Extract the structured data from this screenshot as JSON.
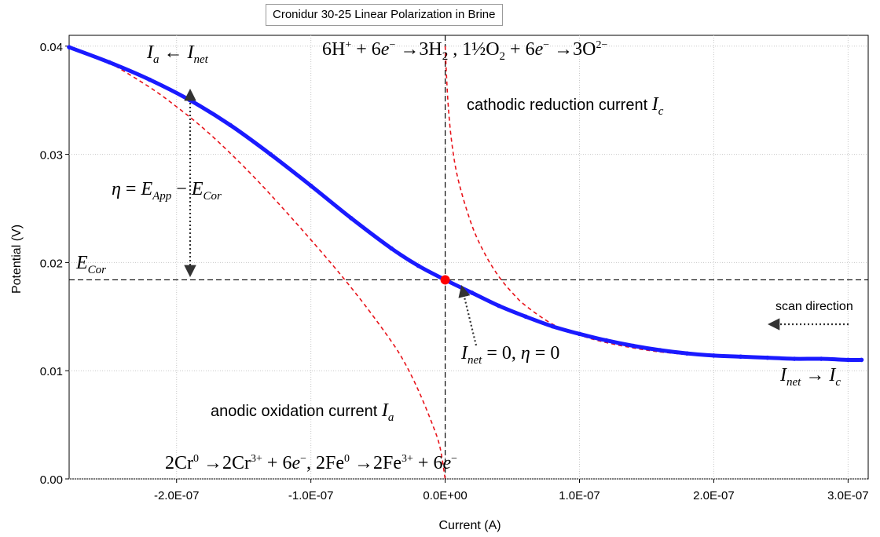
{
  "chart_data": {
    "type": "line",
    "title": "Cronidur 30-25  Linear Polarization in Brine",
    "xlabel": "Current (A)",
    "ylabel": "Potential (V)",
    "xlim": [
      -2.8e-07,
      3.15e-07
    ],
    "ylim": [
      0.0,
      0.041
    ],
    "x_ticks": [
      -2e-07,
      -1e-07,
      0,
      1e-07,
      2e-07,
      3e-07
    ],
    "x_tick_labels": [
      "-2.0E-07",
      "-1.0E-07",
      "0.0E+00",
      "1.0E-07",
      "2.0E-07",
      "3.0E-07"
    ],
    "y_ticks": [
      0.0,
      0.01,
      0.02,
      0.03,
      0.04
    ],
    "y_tick_labels": [
      "0.00",
      "0.01",
      "0.02",
      "0.03",
      "0.04"
    ],
    "grid": true,
    "series": [
      {
        "name": "",
        "color": "#1a1aff",
        "style": "solid-with-markers",
        "x": [
          -2.8e-07,
          -2.5e-07,
          -2.2e-07,
          -1.9e-07,
          -1.6e-07,
          -1.3e-07,
          -1e-07,
          -7e-08,
          -4e-08,
          -2e-08,
          0.0,
          2e-08,
          4e-08,
          6e-08,
          8e-08,
          1e-07,
          1.2e-07,
          1.4e-07,
          1.6e-07,
          1.8e-07,
          2e-07,
          2.2e-07,
          2.4e-07,
          2.6e-07,
          2.8e-07,
          3e-07,
          3.1e-07
        ],
        "y": [
          0.0399,
          0.0385,
          0.0369,
          0.035,
          0.0327,
          0.03,
          0.0271,
          0.0241,
          0.0213,
          0.0197,
          0.0184,
          0.0172,
          0.016,
          0.015,
          0.0141,
          0.0134,
          0.0128,
          0.0123,
          0.0119,
          0.0116,
          0.0114,
          0.0113,
          0.0112,
          0.0111,
          0.0111,
          0.011,
          0.011
        ]
      },
      {
        "name": "",
        "color": "#e8141b",
        "style": "dashed",
        "x": [
          -2.5e-07,
          -2.2e-07,
          -2e-07,
          -1.8e-07,
          -1.6e-07,
          -1.4e-07,
          -1.2e-07,
          -1e-07,
          -8e-08,
          -6e-08,
          -4e-08,
          -3e-08,
          -2e-08,
          -1e-08,
          -4e-09,
          0.0
        ],
        "y": [
          0.0385,
          0.0362,
          0.0344,
          0.0324,
          0.0301,
          0.0276,
          0.0249,
          0.0221,
          0.0192,
          0.0161,
          0.0127,
          0.0107,
          0.0082,
          0.0052,
          0.003,
          0.0
        ]
      },
      {
        "name": "",
        "color": "#e8141b",
        "style": "dashed",
        "x": [
          0.0,
          2e-09,
          5e-09,
          1e-08,
          2e-08,
          3e-08,
          4e-08,
          5e-08,
          6e-08,
          8e-08,
          1e-07,
          1.2e-07,
          1.5e-07,
          1.8e-07,
          2.1e-07,
          2.4e-07,
          2.7e-07,
          3e-07
        ],
        "y": [
          0.04,
          0.035,
          0.031,
          0.0275,
          0.0234,
          0.0207,
          0.0187,
          0.0172,
          0.016,
          0.0143,
          0.0133,
          0.0126,
          0.0119,
          0.0115,
          0.0113,
          0.0112,
          0.0111,
          0.011
        ]
      }
    ],
    "points": [
      {
        "name": "",
        "x": 0.0,
        "y": 0.0184,
        "color": "#ff0000"
      }
    ],
    "reference_lines": {
      "vertical_x": 0.0,
      "horizontal_y": 0.0184
    },
    "annotations": {
      "ia_inet": {
        "a": "I",
        "a_sub": "a",
        "arrow": " ← ",
        "b": "I",
        "b_sub": "net"
      },
      "cathodic_eq": {
        "p1": "6H",
        "p1_sup": "+",
        "p2": " + 6",
        "e": "e",
        "e_sup": "−",
        "p3": " →3H",
        "p3_sub": "2",
        "p4": " ,  1½O",
        "p4_sub": "2",
        "p5": " + 6",
        "e2": "e",
        "e2_sup": "−",
        "p6": " →3O",
        "p6_sup": "2−"
      },
      "cathodic_label": {
        "text": "cathodic reduction current ",
        "i": "I",
        "i_sub": "c"
      },
      "eta": {
        "eta": "η",
        "eq": " = ",
        "e1": "E",
        "e1_sub": "App",
        "minus": " − ",
        "e2": "E",
        "e2_sub": "Cor"
      },
      "ecor": {
        "e": "E",
        "e_sub": "Cor"
      },
      "scan_direction": "scan direction",
      "inet_zero": {
        "i": "I",
        "i_sub": "net",
        "rest": " = 0,  ",
        "eta": "η",
        "rest2": " = 0"
      },
      "inet_ic": {
        "a": "I",
        "a_sub": "net",
        "arrow": " → ",
        "b": "I",
        "b_sub": "c"
      },
      "anodic_label": {
        "text": "anodic oxidation current ",
        "i": "I",
        "i_sub": "a"
      },
      "anodic_eq": {
        "p1": "2Cr",
        "p1_sup": "0",
        "p2": " →2Cr",
        "p2_sup": "3+",
        "p3": " + 6",
        "e": "e",
        "e_sup": "−",
        "p4": ",  2Fe",
        "p4_sup": "0",
        "p5": " →2Fe",
        "p5_sup": "3+",
        "p6": " + 6",
        "e2": "e",
        "e2_sup": "−"
      }
    }
  }
}
